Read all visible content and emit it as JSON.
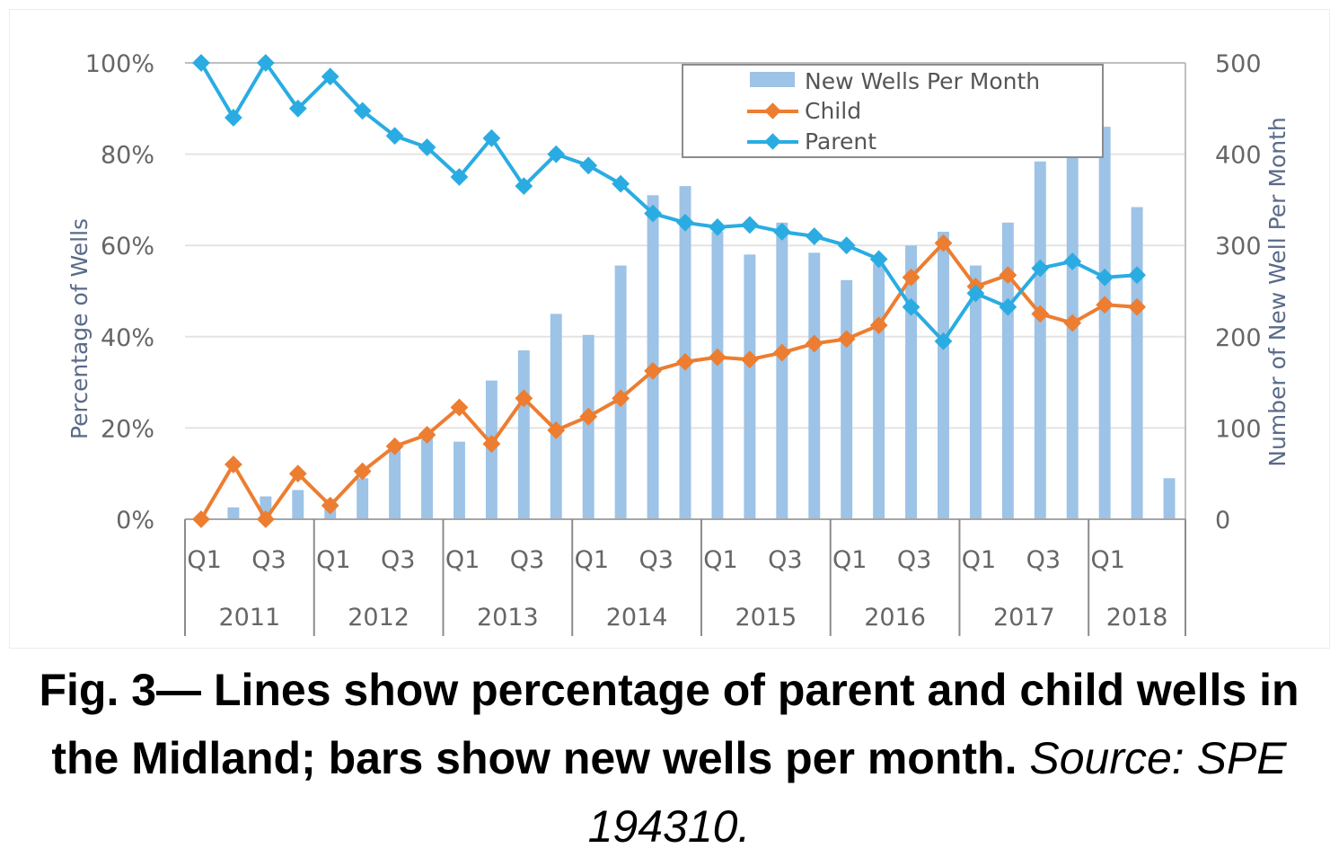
{
  "caption": {
    "main": "Fig. 3— Lines show percentage of parent and child wells in the Midland; bars show new wells per month.",
    "source": "Source: SPE 194310."
  },
  "chart_data": {
    "type": "bar+line",
    "left_axis": {
      "label": "Percentage of Wells",
      "range": [
        0,
        100
      ],
      "ticks": [
        "0%",
        "20%",
        "40%",
        "60%",
        "80%",
        "100%"
      ]
    },
    "right_axis": {
      "label": "Number of New Well Per Month",
      "range": [
        0,
        500
      ],
      "ticks": [
        "0",
        "100",
        "200",
        "300",
        "400",
        "500"
      ]
    },
    "x_axis": {
      "quarter_labels": [
        "Q1",
        "Q3",
        "Q1",
        "Q3",
        "Q1",
        "Q3",
        "Q1",
        "Q3",
        "Q1",
        "Q3",
        "Q1",
        "Q3",
        "Q1",
        "Q3",
        "Q1"
      ],
      "years": [
        "2011",
        "2012",
        "2013",
        "2014",
        "2015",
        "2016",
        "2017",
        "2018"
      ],
      "periods_per_year": 4,
      "total_periods": 31
    },
    "grid": "horizontal",
    "legend": {
      "placement": "top-right",
      "entries": [
        "New Wells Per Month",
        "Child",
        "Parent"
      ]
    },
    "colors": {
      "bars": "#9dc3e6",
      "child": "#ed7d31",
      "parent": "#2aace2",
      "grid": "#e4e4e4",
      "axis": "#a6a6a6"
    },
    "series": [
      {
        "name": "New Wells Per Month",
        "type": "bar",
        "axis": "right",
        "values": [
          0,
          13,
          25,
          32,
          22,
          45,
          80,
          95,
          85,
          152,
          185,
          225,
          202,
          278,
          355,
          365,
          315,
          290,
          325,
          292,
          262,
          280,
          300,
          315,
          278,
          325,
          392,
          420,
          430,
          342,
          45
        ]
      },
      {
        "name": "Child",
        "type": "line",
        "axis": "left",
        "values": [
          0,
          12,
          0,
          10,
          3,
          10.5,
          16,
          18.5,
          24.5,
          16.5,
          26.5,
          19.5,
          22.5,
          26.5,
          32.5,
          34.5,
          35.5,
          35,
          36.5,
          38.5,
          39.5,
          42.5,
          53,
          60.5,
          51,
          53.5,
          45,
          43,
          47,
          46.5
        ]
      },
      {
        "name": "Parent",
        "type": "line",
        "axis": "left",
        "values": [
          100,
          88,
          100,
          90,
          97,
          89.5,
          84,
          81.5,
          75,
          83.5,
          73,
          80,
          77.5,
          73.5,
          67,
          65,
          64,
          64.5,
          63,
          62,
          60,
          57,
          46.5,
          39,
          49.5,
          46.5,
          55,
          56.5,
          53,
          53.5
        ]
      }
    ]
  }
}
